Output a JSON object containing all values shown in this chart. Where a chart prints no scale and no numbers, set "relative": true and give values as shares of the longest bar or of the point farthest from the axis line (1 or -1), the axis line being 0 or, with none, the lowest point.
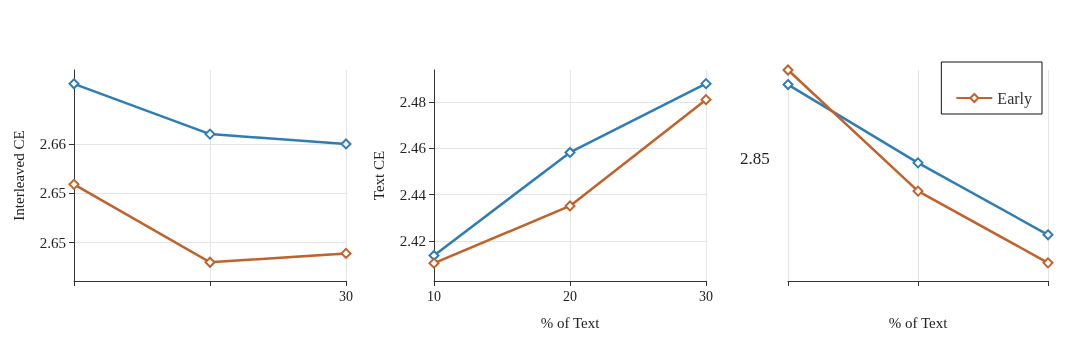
{
  "chart_data": [
    {
      "type": "line",
      "ylabel": "Interleaved CE",
      "categories": [
        null,
        null,
        "30"
      ],
      "ylim": [
        2.6461,
        2.6675
      ],
      "yticks": [
        {
          "value": 2.65,
          "label": "2.65"
        },
        {
          "value": 2.655,
          "label": "2.65"
        },
        2.66
      ],
      "grid": true,
      "marker": "diamond",
      "series": [
        {
          "color": "#2e7db5",
          "values": [
            2.6661,
            2.661,
            2.66
          ]
        },
        {
          "color": "#c0622a",
          "values": [
            2.6559,
            2.648,
            2.6489
          ]
        }
      ]
    },
    {
      "type": "line",
      "xlabel": "% of Text",
      "ylabel": "Text CE",
      "x": [
        10,
        20,
        30
      ],
      "xlim": [
        10,
        30
      ],
      "xticks": [
        10,
        20,
        30
      ],
      "ylim": [
        2.4027,
        2.4938
      ],
      "yticks": [
        2.42,
        2.44,
        2.46,
        2.48
      ],
      "grid": true,
      "marker": "diamond",
      "series": [
        {
          "color": "#2e7db5",
          "values": [
            2.4137,
            2.4582,
            2.4879
          ]
        },
        {
          "color": "#c0622a",
          "values": [
            2.4104,
            2.4351,
            2.481
          ]
        }
      ]
    },
    {
      "type": "line",
      "xlabel": "% of Text",
      "categories": [
        null,
        null,
        null
      ],
      "relative": true,
      "annotations": [
        "2.85"
      ],
      "grid": true,
      "legend": "top right",
      "marker": "diamond",
      "series": [
        {
          "color": "#2e7db5",
          "values": [
            0.931,
            0.56,
            0.219
          ]
        },
        {
          "name": "Early",
          "color": "#c0622a",
          "values": [
            1,
            0.426,
            0.086
          ]
        }
      ]
    }
  ]
}
